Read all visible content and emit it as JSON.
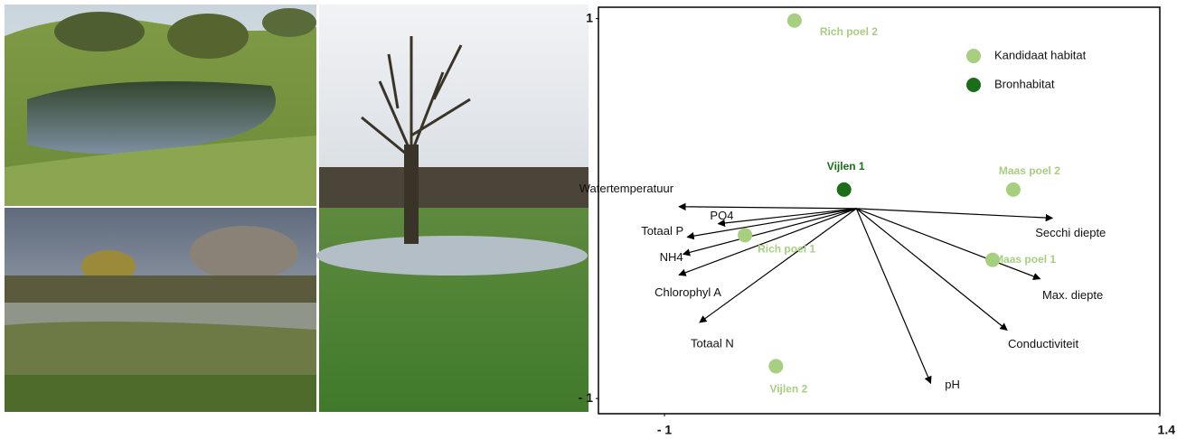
{
  "chart_data": {
    "type": "biplot",
    "xlim": [
      -1.32,
      1.4
    ],
    "ylim": [
      -1.08,
      1.06
    ],
    "xticks": [
      {
        "value": -1,
        "label": "- 1"
      },
      1.4
    ],
    "yticks": [
      {
        "value": -1,
        "label": "- 1"
      },
      1
    ],
    "legend": "top-right",
    "series": [
      {
        "name": "Kandidaat habitat",
        "color": "#a6cf7f",
        "labels": [
          "Rich poel 2",
          "Maas poel 2",
          "Rich poel 1",
          "Maas poel 1",
          "Vijlen 2"
        ],
        "x": [
          -0.37,
          0.69,
          -0.61,
          0.59,
          -0.46
        ],
        "y": [
          0.99,
          0.1,
          -0.14,
          -0.27,
          -0.83
        ]
      },
      {
        "name": "Bronhabitat",
        "color": "#1a6e1a",
        "labels": [
          "Vijlen 1"
        ],
        "x": [
          -0.13
        ],
        "y": [
          0.1
        ]
      }
    ],
    "vector_origin": {
      "x": -0.07,
      "y": 0
    },
    "vectors": {
      "names": [
        "Watertemperatuur",
        "PO4",
        "Totaal P",
        "NH4",
        "Chlorophyl A",
        "Totaal N",
        "Secchi diepte",
        "Max. diepte",
        "Conductiviteit",
        "pH"
      ],
      "x": [
        -0.93,
        -0.74,
        -0.89,
        -0.91,
        -0.93,
        -0.83,
        0.88,
        0.82,
        0.66,
        0.29
      ],
      "y": [
        0.01,
        -0.08,
        -0.15,
        -0.24,
        -0.35,
        -0.6,
        -0.05,
        -0.37,
        -0.64,
        -0.92
      ]
    }
  }
}
